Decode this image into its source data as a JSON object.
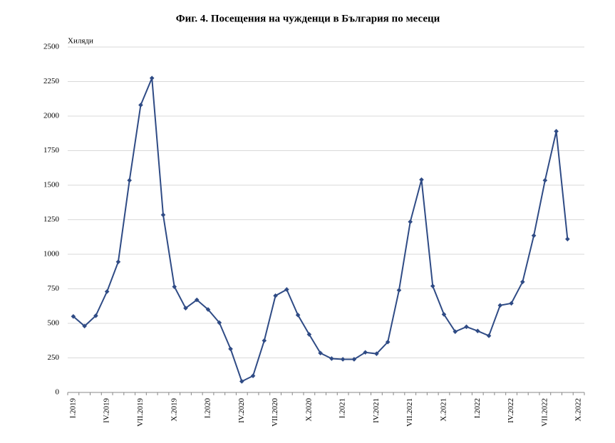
{
  "chart_data": {
    "type": "line",
    "title": "Фиг. 4. Посещения на чужденци в България по месеци",
    "y_label": "Хиляди",
    "categories": [
      "I.2019",
      null,
      null,
      "IV.2019",
      null,
      null,
      "VII.2019",
      null,
      null,
      "X.2019",
      null,
      null,
      "I.2020",
      null,
      null,
      "IV.2020",
      null,
      null,
      "VII.2020",
      null,
      null,
      "X.2020",
      null,
      null,
      "I.2021",
      null,
      null,
      "IV.2021",
      null,
      null,
      "VII.2021",
      null,
      null,
      "X.2021",
      null,
      null,
      "I.2022",
      null,
      null,
      "IV.2022",
      null,
      null,
      "VII.2022",
      null,
      null,
      "X.2022"
    ],
    "series": [
      {
        "name": "Посещения",
        "color": "#2f4b85",
        "values": [
          550,
          480,
          555,
          730,
          945,
          1535,
          2080,
          2275,
          1285,
          765,
          610,
          670,
          600,
          505,
          315,
          80,
          120,
          375,
          700,
          745,
          560,
          420,
          285,
          245,
          240,
          240,
          290,
          280,
          365,
          740,
          1235,
          1540,
          770,
          565,
          440,
          475,
          445,
          410,
          630,
          645,
          800,
          1135,
          1535,
          1890,
          1110,
          null
        ]
      }
    ],
    "ylim": [
      0,
      2500
    ],
    "yticks": [
      0,
      250,
      500,
      750,
      1000,
      1250,
      1500,
      1750,
      2000,
      2250,
      2500
    ],
    "grid": true
  }
}
